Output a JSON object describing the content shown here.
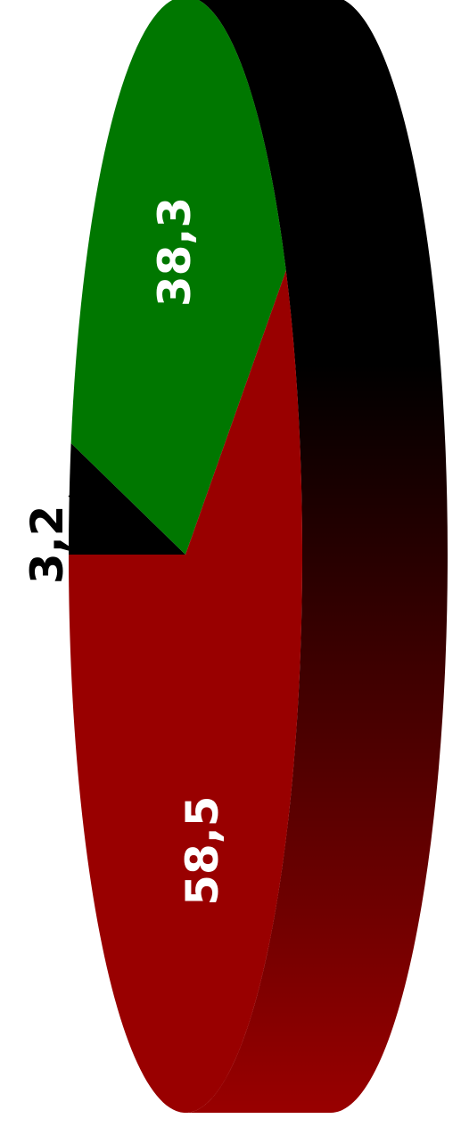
{
  "chart_data": {
    "type": "pie",
    "style": "3d",
    "orientation": "rotated",
    "slices": [
      {
        "label": "3,2",
        "value": 3.2,
        "color": "#000000",
        "label_color": "#000000",
        "label_placement": "outside"
      },
      {
        "label": "38,3",
        "value": 38.3,
        "color": "#007700",
        "label_color": "#ffffff",
        "label_placement": "inside"
      },
      {
        "label": "58,5",
        "value": 58.5,
        "color": "#990000",
        "label_color": "#ffffff",
        "label_placement": "inside"
      }
    ],
    "side_gradient": [
      "#000000",
      "#990000"
    ],
    "title": "",
    "legend": "none"
  }
}
